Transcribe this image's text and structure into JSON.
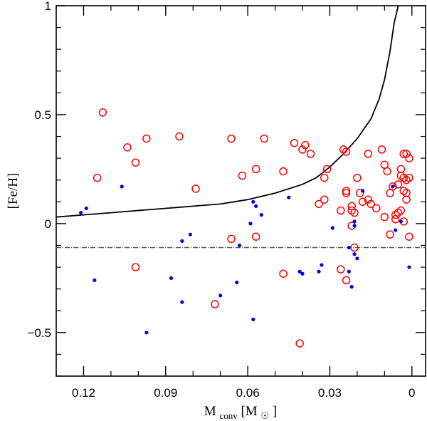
{
  "chart_data": {
    "type": "scatter",
    "xlabel": {
      "main": "M",
      "sub": "conv",
      "unit_open": " [M",
      "unit_sub": "☉",
      "unit_close": "]"
    },
    "ylabel": "[Fe/H]",
    "xlim": [
      0.13,
      -0.005
    ],
    "ylim": [
      -0.7,
      1.0
    ],
    "xticks": [
      {
        "value": 0.12,
        "label": "0.12"
      },
      {
        "value": 0.09,
        "label": "0.09"
      },
      {
        "value": 0.06,
        "label": "0.06"
      },
      {
        "value": 0.03,
        "label": "0.03"
      },
      {
        "value": 0.0,
        "label": "0"
      }
    ],
    "yticks": [
      {
        "value": 1.0,
        "label": "1"
      },
      {
        "value": 0.5,
        "label": "0.5"
      },
      {
        "value": 0.0,
        "label": "0"
      },
      {
        "value": -0.5,
        "label": "−0.5"
      }
    ],
    "colors": {
      "open_circles": "#ff0000",
      "filled_dots": "#0000ff",
      "curve": "#000000",
      "reference_line": "#555555"
    },
    "reference_line": {
      "y": -0.11,
      "style": "dashed"
    },
    "curve": {
      "x": [
        0.13,
        0.12,
        0.11,
        0.1,
        0.09,
        0.08,
        0.07,
        0.06,
        0.05,
        0.04,
        0.035,
        0.03,
        0.025,
        0.02,
        0.015,
        0.012,
        0.01,
        0.008,
        0.0065,
        0.005
      ],
      "y": [
        0.03,
        0.04,
        0.05,
        0.06,
        0.07,
        0.08,
        0.09,
        0.11,
        0.14,
        0.18,
        0.21,
        0.26,
        0.32,
        0.39,
        0.48,
        0.57,
        0.66,
        0.79,
        0.92,
        1.0
      ]
    },
    "series": [
      {
        "marker": "open-circle",
        "points": [
          [
            0.113,
            0.51
          ],
          [
            0.115,
            0.21
          ],
          [
            0.104,
            0.35
          ],
          [
            0.101,
            0.28
          ],
          [
            0.097,
            0.39
          ],
          [
            0.085,
            0.4
          ],
          [
            0.079,
            0.16
          ],
          [
            0.101,
            -0.2
          ],
          [
            0.066,
            0.39
          ],
          [
            0.062,
            0.22
          ],
          [
            0.057,
            0.25
          ],
          [
            0.054,
            0.39
          ],
          [
            0.047,
            0.24
          ],
          [
            0.043,
            0.37
          ],
          [
            0.039,
            0.36
          ],
          [
            0.04,
            0.34
          ],
          [
            0.037,
            0.32
          ],
          [
            0.034,
            0.09
          ],
          [
            0.032,
            0.21
          ],
          [
            0.031,
            0.25
          ],
          [
            0.032,
            0.11
          ],
          [
            0.025,
            0.34
          ],
          [
            0.024,
            0.15
          ],
          [
            0.022,
            0.06
          ],
          [
            0.021,
            0.05
          ],
          [
            0.02,
            0.21
          ],
          [
            0.018,
            0.1
          ],
          [
            0.016,
            0.11
          ],
          [
            0.016,
            0.32
          ],
          [
            0.015,
            0.09
          ],
          [
            0.013,
            0.07
          ],
          [
            0.011,
            0.34
          ],
          [
            0.01,
            0.27
          ],
          [
            0.009,
            0.24
          ],
          [
            0.008,
            0.14
          ],
          [
            0.007,
            0.17
          ],
          [
            0.006,
            0.04
          ],
          [
            0.005,
            0.18
          ],
          [
            0.004,
            0.22
          ],
          [
            0.004,
            0.25
          ],
          [
            0.003,
            0.32
          ],
          [
            0.002,
            0.32
          ],
          [
            0.001,
            0.3
          ],
          [
            0.003,
            0.21
          ],
          [
            0.002,
            0.2
          ],
          [
            0.001,
            0.21
          ],
          [
            0.003,
            0.15
          ],
          [
            0.002,
            0.14
          ],
          [
            0.002,
            0.11
          ],
          [
            0.004,
            0.06
          ],
          [
            0.005,
            0.05
          ],
          [
            0.006,
            0.02
          ],
          [
            0.008,
            -0.05
          ],
          [
            0.003,
            0.01
          ],
          [
            0.001,
            -0.06
          ],
          [
            0.057,
            -0.06
          ],
          [
            0.066,
            -0.07
          ],
          [
            0.072,
            -0.37
          ],
          [
            0.047,
            -0.23
          ],
          [
            0.041,
            -0.55
          ],
          [
            0.026,
            -0.21
          ],
          [
            0.024,
            -0.26
          ],
          [
            0.024,
            0.14
          ],
          [
            0.022,
            -0.01
          ],
          [
            0.021,
            -0.11
          ],
          [
            0.022,
            0.08
          ],
          [
            0.026,
            0.06
          ],
          [
            0.024,
            0.33
          ],
          [
            0.01,
            0.03
          ],
          [
            0.019,
            0.14
          ]
        ]
      },
      {
        "marker": "filled-dot",
        "points": [
          [
            0.121,
            0.05
          ],
          [
            0.119,
            0.07
          ],
          [
            0.106,
            0.17
          ],
          [
            0.116,
            -0.26
          ],
          [
            0.084,
            -0.08
          ],
          [
            0.081,
            -0.05
          ],
          [
            0.088,
            -0.25
          ],
          [
            0.084,
            -0.36
          ],
          [
            0.097,
            -0.5
          ],
          [
            0.07,
            -0.33
          ],
          [
            0.064,
            -0.27
          ],
          [
            0.063,
            -0.1
          ],
          [
            0.059,
            0.0
          ],
          [
            0.058,
            0.1
          ],
          [
            0.057,
            0.08
          ],
          [
            0.055,
            0.04
          ],
          [
            0.058,
            -0.44
          ],
          [
            0.045,
            0.12
          ],
          [
            0.041,
            -0.22
          ],
          [
            0.04,
            -0.23
          ],
          [
            0.034,
            -0.22
          ],
          [
            0.033,
            -0.19
          ],
          [
            0.029,
            -0.02
          ],
          [
            0.023,
            -0.22
          ],
          [
            0.022,
            -0.29
          ],
          [
            0.021,
            -0.14
          ],
          [
            0.02,
            -0.16
          ],
          [
            0.021,
            0.01
          ],
          [
            0.021,
            -0.01
          ],
          [
            0.018,
            0.15
          ],
          [
            0.007,
            0.17
          ],
          [
            0.006,
            -0.03
          ],
          [
            0.004,
            0.01
          ],
          [
            0.001,
            -0.2
          ],
          [
            0.023,
            -0.11
          ]
        ]
      }
    ]
  }
}
